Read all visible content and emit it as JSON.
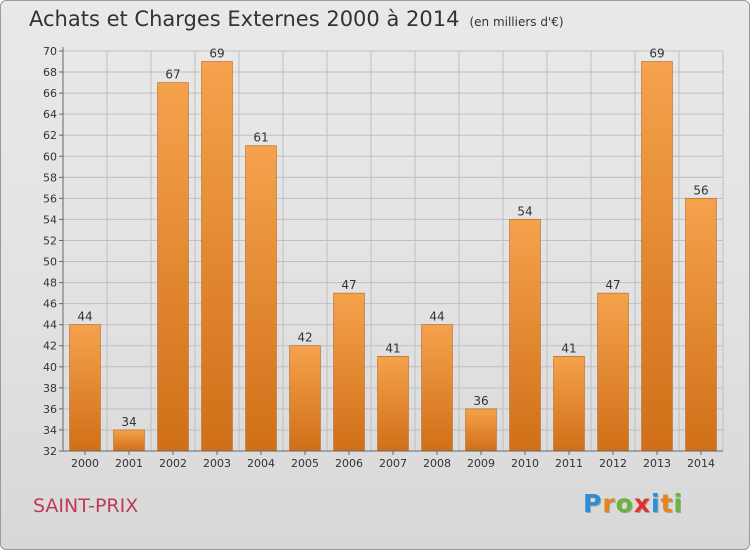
{
  "title": "Achats et Charges Externes 2000 à 2014",
  "subtitle": "(en milliers d'€)",
  "commune": "SAINT-PRIX",
  "brand": {
    "letters": [
      {
        "ch": "P",
        "color": "#2b8fd6"
      },
      {
        "ch": "r",
        "color": "#e8831a"
      },
      {
        "ch": "o",
        "color": "#6ab43b"
      },
      {
        "ch": "x",
        "color": "#e2312d"
      },
      {
        "ch": "i",
        "color": "#2b8fd6"
      },
      {
        "ch": "t",
        "color": "#e8831a"
      },
      {
        "ch": "i",
        "color": "#6ab43b"
      }
    ]
  },
  "colors": {
    "bar_light": "#f5a24c",
    "bar_dark": "#d06f18",
    "grid": "#bfbfbf"
  },
  "chart_data": {
    "type": "bar",
    "categories": [
      "2000",
      "2001",
      "2002",
      "2003",
      "2004",
      "2005",
      "2006",
      "2007",
      "2008",
      "2009",
      "2010",
      "2011",
      "2012",
      "2013",
      "2014"
    ],
    "values": [
      44,
      34,
      67,
      69,
      61,
      42,
      47,
      41,
      44,
      36,
      54,
      41,
      47,
      69,
      56
    ],
    "ylim": [
      32,
      70
    ],
    "ytick_step": 2,
    "grid": true
  }
}
